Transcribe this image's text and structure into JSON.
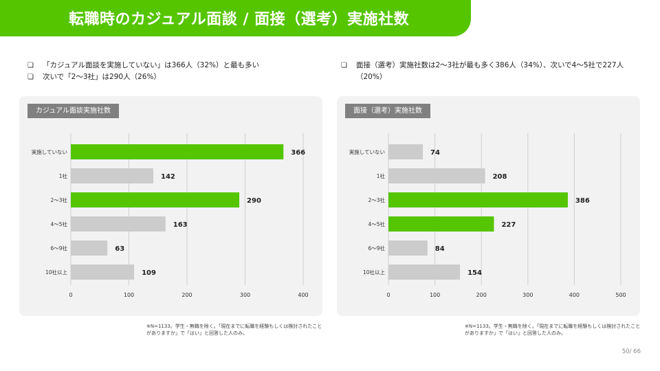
{
  "title": "転職時のカジュアル面談 / 面接（選考）実施社数",
  "bullets_left": [
    "「カジュアル面談を実施していない」は366人（32%）と最も多い",
    "次いで「2〜3社」は290人（26%）"
  ],
  "bullets_right": [
    "面接（選考）実施社数は2〜3社が最も多く386人（34%）、次いで4〜5社で227人（20%）"
  ],
  "bullet_mark": "❏",
  "colors": {
    "brand": "#55c500",
    "highlight": "#55c500",
    "base": "#cccccc",
    "panel": "#f2f2f2",
    "label_bg": "#808080"
  },
  "chart_data": [
    {
      "type": "bar",
      "orientation": "horizontal",
      "title": "カジュアル面談実施社数",
      "categories": [
        "実施していない",
        "1社",
        "2〜3社",
        "4〜5社",
        "6〜9社",
        "10社以上"
      ],
      "values": [
        366,
        142,
        290,
        163,
        63,
        109
      ],
      "highlight": [
        true,
        false,
        true,
        false,
        false,
        false
      ],
      "xlim": [
        0,
        400
      ],
      "xticks": [
        0,
        100,
        200,
        300,
        400
      ],
      "grid": true
    },
    {
      "type": "bar",
      "orientation": "horizontal",
      "title": "面接（選考）実施社数",
      "categories": [
        "実施していない",
        "1社",
        "2〜3社",
        "4〜5社",
        "6〜9社",
        "10社以上"
      ],
      "values": [
        74,
        208,
        386,
        227,
        84,
        154
      ],
      "highlight": [
        false,
        false,
        true,
        true,
        false,
        false
      ],
      "xlim": [
        0,
        500
      ],
      "xticks": [
        0,
        100,
        200,
        300,
        400,
        500
      ],
      "grid": true
    }
  ],
  "notes": [
    "※N=1133。学生・無職を除く。「現在までに転職を経験もしくは検討されたことがありますか」で「はい」と回答した人のみ。",
    "※N=1133。学生・無職を除く。「現在までに転職を経験もしくは検討されたことがありますか」で「はい」と回答した人のみ。"
  ],
  "page": {
    "current": "50",
    "total": "66",
    "separator": "/ "
  }
}
